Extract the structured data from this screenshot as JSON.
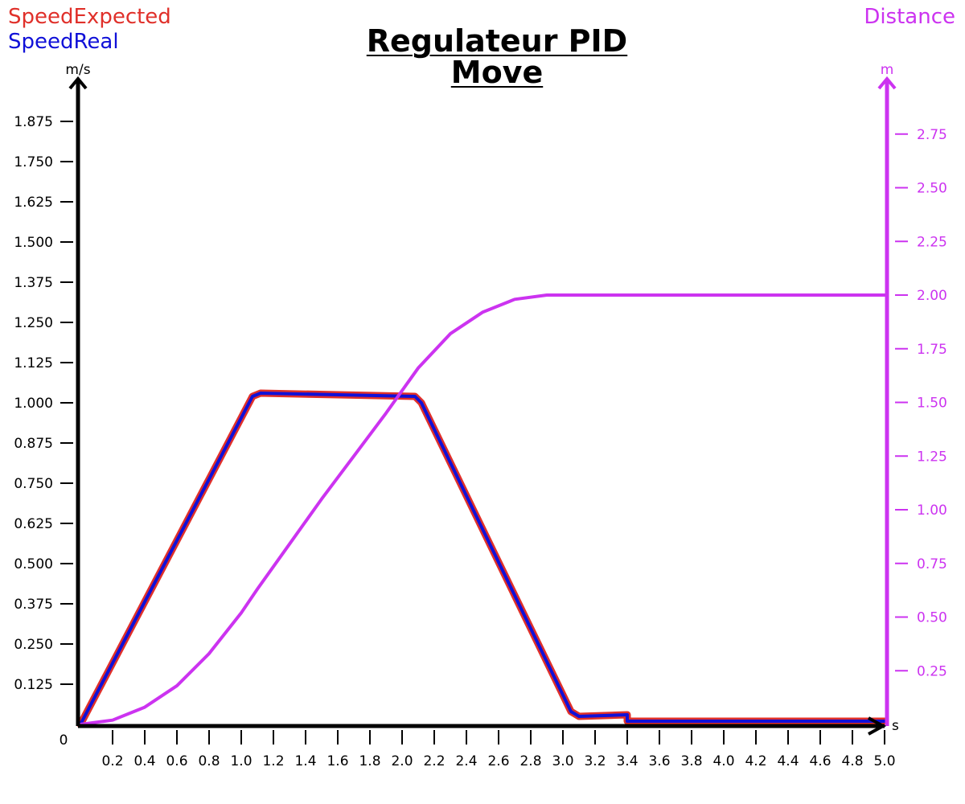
{
  "chart_data": {
    "type": "line",
    "title": "Regulateur PID",
    "subtitle": "Move",
    "legend": {
      "left": [
        "SpeedExpected",
        "SpeedReal"
      ],
      "right": [
        "Distance"
      ]
    },
    "colors": {
      "SpeedExpected": "#e0302a",
      "SpeedReal": "#1010d8",
      "Distance": "#cc33f0",
      "axis": "#000000"
    },
    "x_axis": {
      "unit": "s",
      "range": [
        0,
        5.0
      ],
      "origin_label": "0",
      "ticks": [
        "0.2",
        "0.4",
        "0.6",
        "0.8",
        "1.0",
        "1.2",
        "1.4",
        "1.6",
        "1.8",
        "2.0",
        "2.2",
        "2.4",
        "2.6",
        "2.8",
        "3.0",
        "3.2",
        "3.4",
        "3.6",
        "3.8",
        "4.0",
        "4.2",
        "4.4",
        "4.6",
        "4.8",
        "5.0"
      ]
    },
    "y_left": {
      "unit": "m/s",
      "range": [
        0,
        2.0
      ],
      "ticks": [
        "0.125",
        "0.250",
        "0.375",
        "0.500",
        "0.625",
        "0.750",
        "0.875",
        "1.000",
        "1.125",
        "1.250",
        "1.375",
        "1.500",
        "1.625",
        "1.750",
        "1.875"
      ]
    },
    "y_right": {
      "unit": "m",
      "range": [
        0,
        3.0
      ],
      "ticks": [
        "0.25",
        "0.50",
        "0.75",
        "1.00",
        "1.25",
        "1.50",
        "1.75",
        "2.00",
        "2.25",
        "2.50",
        "2.75"
      ]
    },
    "series": [
      {
        "name": "SpeedExpected",
        "axis": "left",
        "x": [
          0,
          1.07,
          1.12,
          1.6,
          2.08,
          2.12,
          3.05,
          3.1,
          3.4,
          3.4,
          5.0
        ],
        "y": [
          0,
          1.02,
          1.03,
          1.025,
          1.02,
          1.0,
          0.04,
          0.025,
          0.03,
          0.01,
          0.01
        ]
      },
      {
        "name": "SpeedReal",
        "axis": "left",
        "x": [
          0,
          1.07,
          1.12,
          1.6,
          2.08,
          2.12,
          3.05,
          3.1,
          3.4,
          3.4,
          5.0
        ],
        "y": [
          0,
          1.02,
          1.03,
          1.025,
          1.02,
          1.0,
          0.04,
          0.025,
          0.03,
          0.01,
          0.01
        ]
      },
      {
        "name": "Distance",
        "axis": "right",
        "x": [
          0,
          0.2,
          0.4,
          0.6,
          0.8,
          1.0,
          1.1,
          1.3,
          1.5,
          1.7,
          1.9,
          2.1,
          2.3,
          2.5,
          2.7,
          2.9,
          3.1,
          3.3,
          3.4,
          4.0,
          5.0
        ],
        "y": [
          0,
          0.02,
          0.08,
          0.18,
          0.33,
          0.52,
          0.63,
          0.84,
          1.05,
          1.25,
          1.45,
          1.66,
          1.82,
          1.92,
          1.98,
          2.0,
          2.0,
          2.0,
          2.0,
          2.0,
          2.0
        ]
      }
    ]
  }
}
